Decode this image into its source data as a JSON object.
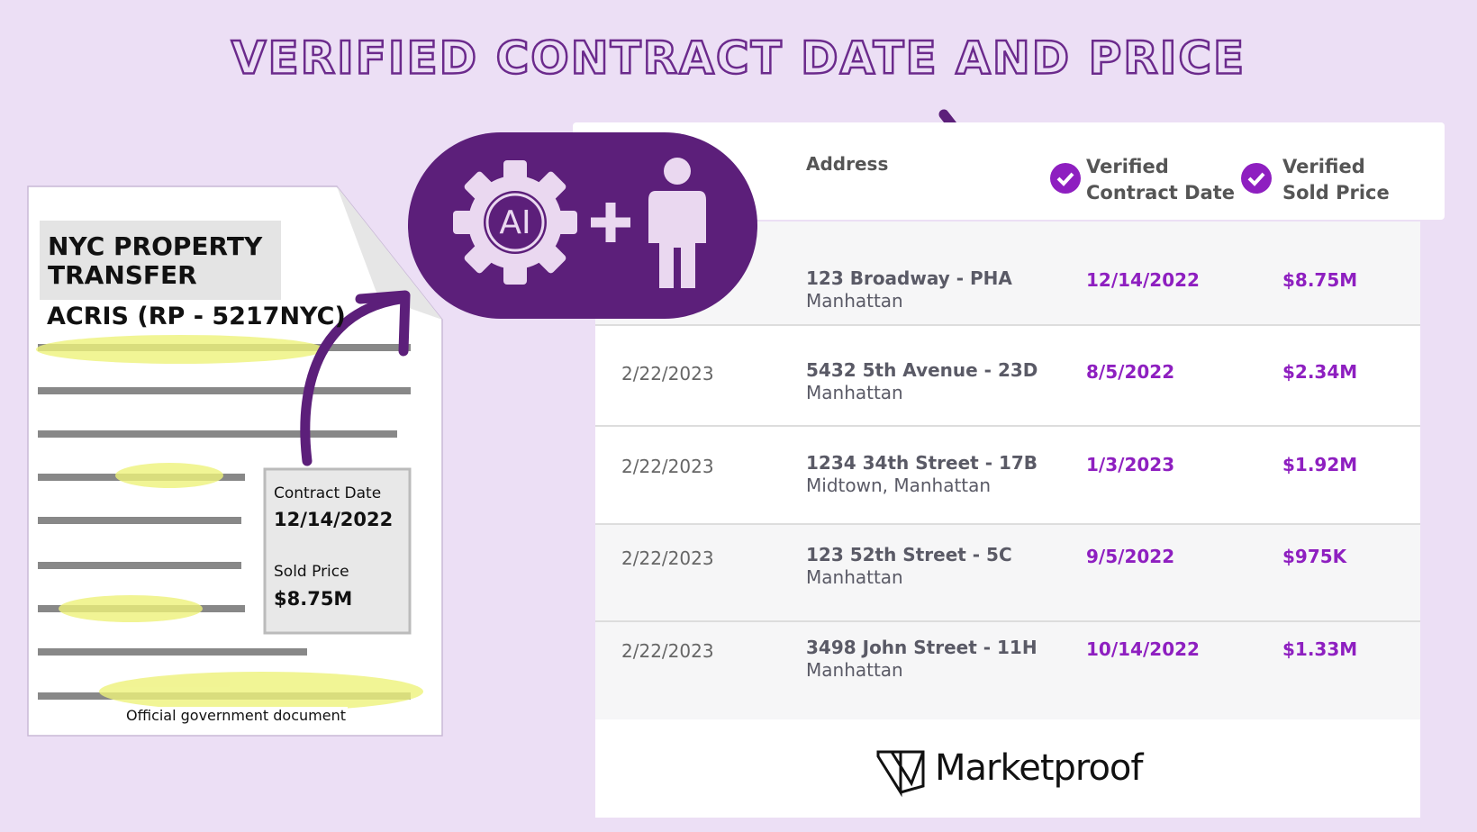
{
  "title": "VERIFIED CONTRACT DATE AND PRICE",
  "document": {
    "heading": "NYC PROPERTY TRANSFER",
    "form": "ACRIS (RP - 5217NYC)",
    "fields": [
      {
        "label": "Contract Date",
        "value": "12/14/2022"
      },
      {
        "label": "Sold Price",
        "value": "$8.75M"
      }
    ],
    "caption": "Official government document"
  },
  "badge": {
    "text": "AI"
  },
  "table": {
    "headers": [
      "Address",
      "Verified Contract Date",
      "Verified Sold Price"
    ],
    "rows": [
      {
        "address": "123 Broadway - PHA",
        "area": "Manhattan",
        "contract_date": "12/14/2022",
        "price": "$8.75M"
      },
      {
        "listed": "2/22/2023",
        "address": "5432 5th Avenue - 23D",
        "area": "Manhattan",
        "contract_date": "8/5/2022",
        "price": "$2.34M"
      },
      {
        "listed": "2/22/2023",
        "address": "1234 34th Street - 17B",
        "area": "Midtown, Manhattan",
        "contract_date": "1/3/2023",
        "price": "$1.92M"
      },
      {
        "listed": "2/22/2023",
        "address": "123 52th Street - 5C",
        "area": "Manhattan",
        "contract_date": "9/5/2022",
        "price": "$975K"
      },
      {
        "listed": "2/22/2023",
        "address": "3498 John Street - 11H",
        "area": "Manhattan",
        "contract_date": "10/14/2022",
        "price": "$1.33M"
      }
    ]
  },
  "brand": "Marketproof"
}
